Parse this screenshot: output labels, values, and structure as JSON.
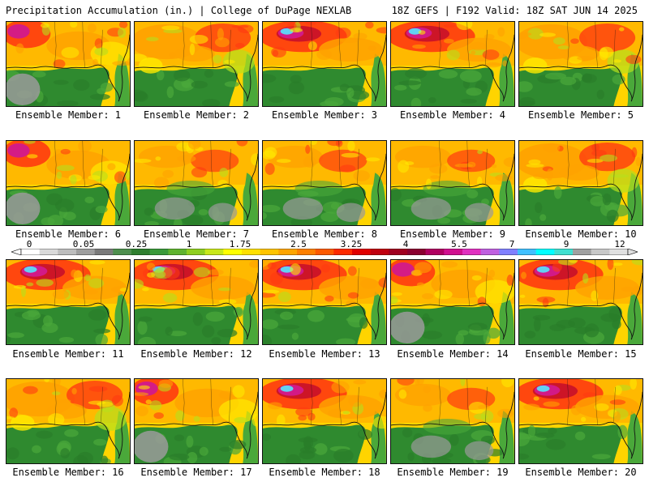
{
  "header": {
    "title": "Precipitation Accumulation (in.) | College of DuPage NEXLAB",
    "run_info": "18Z GEFS | F192 Valid: 18Z SAT JUN 14 2025"
  },
  "panel_label_prefix": "Ensemble Member: ",
  "members": [
    {
      "label": "Ensemble Member: 1",
      "scheme": 1
    },
    {
      "label": "Ensemble Member: 2",
      "scheme": 0
    },
    {
      "label": "Ensemble Member: 3",
      "scheme": 3
    },
    {
      "label": "Ensemble Member: 4",
      "scheme": 3
    },
    {
      "label": "Ensemble Member: 5",
      "scheme": 0
    },
    {
      "label": "Ensemble Member: 6",
      "scheme": 1
    },
    {
      "label": "Ensemble Member: 7",
      "scheme": 2
    },
    {
      "label": "Ensemble Member: 8",
      "scheme": 2
    },
    {
      "label": "Ensemble Member: 9",
      "scheme": 2
    },
    {
      "label": "Ensemble Member: 10",
      "scheme": 0
    },
    {
      "label": "Ensemble Member: 11",
      "scheme": 3
    },
    {
      "label": "Ensemble Member: 12",
      "scheme": 3
    },
    {
      "label": "Ensemble Member: 13",
      "scheme": 3
    },
    {
      "label": "Ensemble Member: 14",
      "scheme": 1
    },
    {
      "label": "Ensemble Member: 15",
      "scheme": 3
    },
    {
      "label": "Ensemble Member: 16",
      "scheme": 0
    },
    {
      "label": "Ensemble Member: 17",
      "scheme": 1
    },
    {
      "label": "Ensemble Member: 18",
      "scheme": 3
    },
    {
      "label": "Ensemble Member: 19",
      "scheme": 2
    },
    {
      "label": "Ensemble Member: 20",
      "scheme": 3
    }
  ],
  "colorbar": {
    "labels": [
      "0",
      "0.05",
      "0.25",
      "1",
      "1.75",
      "2.5",
      "3.25",
      "4",
      "5.5",
      "7",
      "9",
      "12"
    ],
    "colors": [
      "#ffffff",
      "#d9d9d9",
      "#bdbdbd",
      "#9e9e9e",
      "#7a7a7a",
      "#4e8f4e",
      "#2f7f2f",
      "#3a9a3a",
      "#5fb32f",
      "#8fcf1f",
      "#c8e81a",
      "#ffff00",
      "#ffe000",
      "#ffc400",
      "#ffa500",
      "#ff8000",
      "#ff5a00",
      "#ff2a00",
      "#e00000",
      "#c00010",
      "#a00020",
      "#8b0030",
      "#b00060",
      "#d0108f",
      "#e030c0",
      "#c060e0",
      "#8080ff",
      "#40c0ff",
      "#00ffff",
      "#40e0d0",
      "#a0a0a0",
      "#c8c8c8",
      "#e0e0e0"
    ]
  },
  "map_palette": {
    "water_base": "#2f8a2f",
    "land_base": "#ffd400",
    "gray": "#9a9a9a",
    "green_dark": "#2a7d2a",
    "green": "#4aa83a",
    "lime": "#b6e01c",
    "yellow": "#ffea00",
    "orange": "#ffa200",
    "red": "#ff3b10",
    "darkred": "#c8102a",
    "magenta": "#d21a8c",
    "cyan": "#55e6ff",
    "coast": "#111111"
  }
}
